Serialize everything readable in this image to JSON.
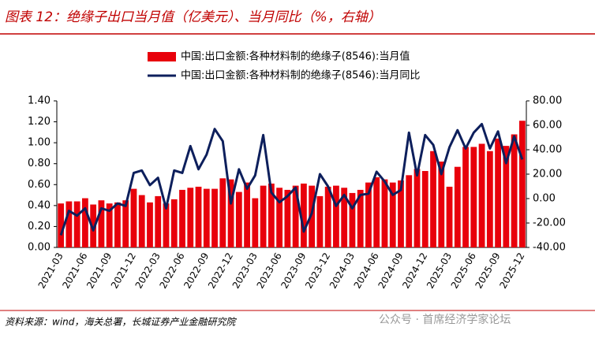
{
  "chart_data": {
    "type": "bar",
    "title": "图表 12：绝缘子出口当月值（亿美元）、当月同比（%，右轴）",
    "source": "资料来源：wind，海关总署，长城证券产业金融研究院",
    "watermark": "公众号 · 首席经济学家论坛",
    "categories": [
      "2021-03",
      null,
      null,
      "2021-06",
      null,
      null,
      "2021-09",
      null,
      null,
      "2021-12",
      null,
      null,
      "2022-03",
      null,
      null,
      "2022-06",
      null,
      null,
      "2022-09",
      null,
      null,
      "2022-12",
      null,
      null,
      "2023-03",
      null,
      null,
      "2023-06",
      null,
      null,
      "2023-09",
      null,
      null,
      "2023-12",
      null,
      null,
      "2024-03",
      null,
      null,
      "2024-06",
      null,
      null,
      "2024-09",
      null,
      null,
      "2024-12",
      null,
      null,
      "2025-03",
      null,
      null,
      "2025-06",
      null,
      null,
      "2025-09",
      null,
      null,
      "2025-12"
    ],
    "series": [
      {
        "name": "中国:出口金额:各种材料制的绝缘子(8546):当月值",
        "type": "bar",
        "axis": "y",
        "color": "#e8000b",
        "values": [
          0.42,
          0.44,
          0.44,
          0.47,
          0.41,
          0.45,
          0.42,
          0.43,
          0.45,
          0.56,
          0.5,
          0.43,
          0.49,
          0.42,
          0.46,
          0.55,
          0.57,
          0.58,
          0.56,
          0.56,
          0.66,
          0.65,
          0.53,
          0.62,
          0.47,
          0.59,
          0.61,
          0.57,
          0.55,
          0.59,
          0.61,
          0.59,
          0.49,
          0.58,
          0.59,
          0.57,
          0.52,
          0.55,
          0.62,
          0.67,
          0.65,
          0.62,
          0.64,
          0.69,
          0.75,
          0.73,
          0.92,
          0.82,
          0.58,
          0.77,
          0.96,
          0.96,
          0.99,
          0.92,
          1.04,
          0.97,
          1.08,
          1.21
        ]
      },
      {
        "name": "中国:出口金额:各种材料制的绝缘子(8546):当月同比",
        "type": "line",
        "axis": "y2",
        "color": "#0d1f5c",
        "values": [
          -30,
          -10,
          -14,
          -8,
          -26,
          -8,
          -10,
          -4,
          -6,
          21,
          23,
          11,
          17,
          -8,
          23,
          21,
          43,
          24,
          36,
          57,
          47,
          -4,
          24,
          8,
          19,
          52,
          5,
          -3,
          2,
          9,
          -27,
          -12,
          20,
          10,
          -6,
          3,
          -8,
          3,
          4,
          22,
          14,
          3,
          7,
          54,
          19,
          52,
          44,
          20,
          42,
          56,
          41,
          54,
          61,
          41,
          55,
          29,
          51,
          32
        ]
      }
    ],
    "ylim": [
      0,
      1.4
    ],
    "yticks": [
      {
        "value": 0,
        "label": "0.00"
      },
      {
        "value": 0.2,
        "label": "0.20"
      },
      {
        "value": 0.4,
        "label": "0.40"
      },
      {
        "value": 0.6,
        "label": "0.60"
      },
      {
        "value": 0.8,
        "label": "0.80"
      },
      {
        "value": 1.0,
        "label": "1.00"
      },
      {
        "value": 1.2,
        "label": "1.20"
      },
      {
        "value": 1.4,
        "label": "1.40"
      }
    ],
    "y2lim": [
      -40,
      80
    ],
    "y2ticks": [
      {
        "value": -40,
        "label": "-40.00"
      },
      {
        "value": -20,
        "label": "-20.00"
      },
      {
        "value": 0,
        "label": "0.00"
      },
      {
        "value": 20,
        "label": "20.00"
      },
      {
        "value": 40,
        "label": "40.00"
      },
      {
        "value": 60,
        "label": "60.00"
      },
      {
        "value": 80,
        "label": "80.00"
      }
    ]
  }
}
